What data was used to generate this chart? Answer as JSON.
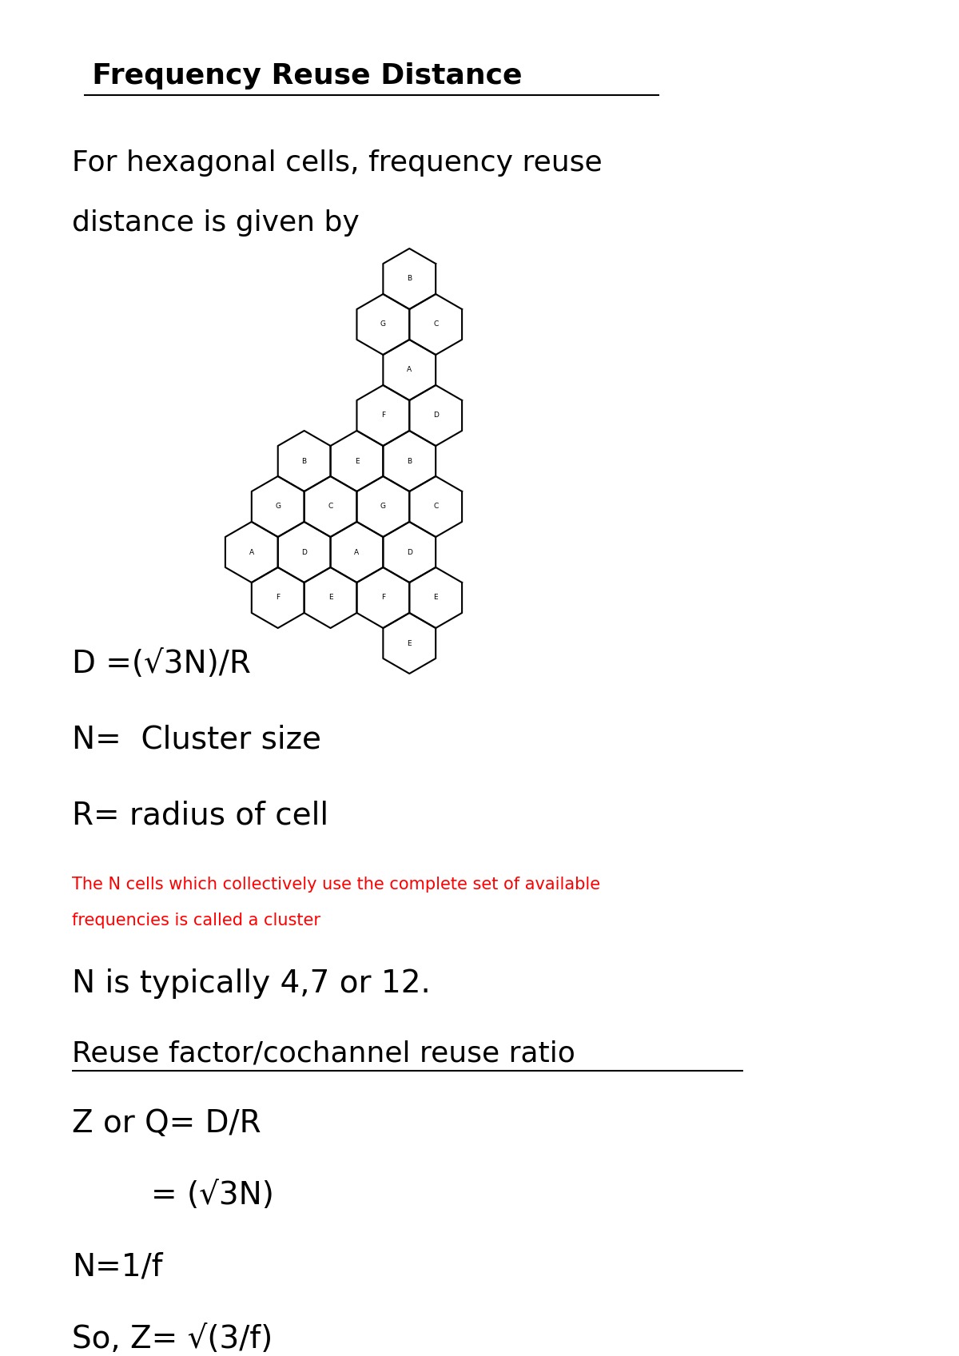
{
  "title": "  Frequency Reuse Distance",
  "subtitle_line1": "For hexagonal cells, frequency reuse",
  "subtitle_line2": "distance is given by",
  "formula1": "D =(√3N)/R",
  "label_N": "N=  Cluster size",
  "label_R": "R= radius of cell",
  "red_text_line1": "The N cells which collectively use the complete set of available",
  "red_text_line2": "frequencies is called a cluster",
  "label_N2": "N is typically 4,7 or 12.",
  "underline2": "Reuse factor/cochannel reuse ratio",
  "formula2": "Z or Q= D/R",
  "formula3": "        = (√3N)",
  "formula4": "N=1/f",
  "formula5": "So, Z= √(3/f)",
  "background": "#ffffff",
  "grid_cells": [
    [
      3,
      0,
      "B"
    ],
    [
      2,
      1,
      "G"
    ],
    [
      3,
      1,
      "C"
    ],
    [
      3,
      2,
      "A"
    ],
    [
      2,
      3,
      "F"
    ],
    [
      3,
      3,
      "D"
    ],
    [
      1,
      4,
      "B"
    ],
    [
      2,
      4,
      "E"
    ],
    [
      3,
      4,
      "B"
    ],
    [
      0,
      5,
      "G"
    ],
    [
      1,
      5,
      "C"
    ],
    [
      2,
      5,
      "G"
    ],
    [
      3,
      5,
      "C"
    ],
    [
      0,
      6,
      "A"
    ],
    [
      1,
      6,
      "D"
    ],
    [
      2,
      6,
      "A"
    ],
    [
      3,
      6,
      "D"
    ],
    [
      0,
      7,
      "F"
    ],
    [
      1,
      7,
      "E"
    ],
    [
      2,
      7,
      "F"
    ],
    [
      3,
      7,
      "E"
    ],
    [
      3,
      8,
      "E"
    ]
  ]
}
